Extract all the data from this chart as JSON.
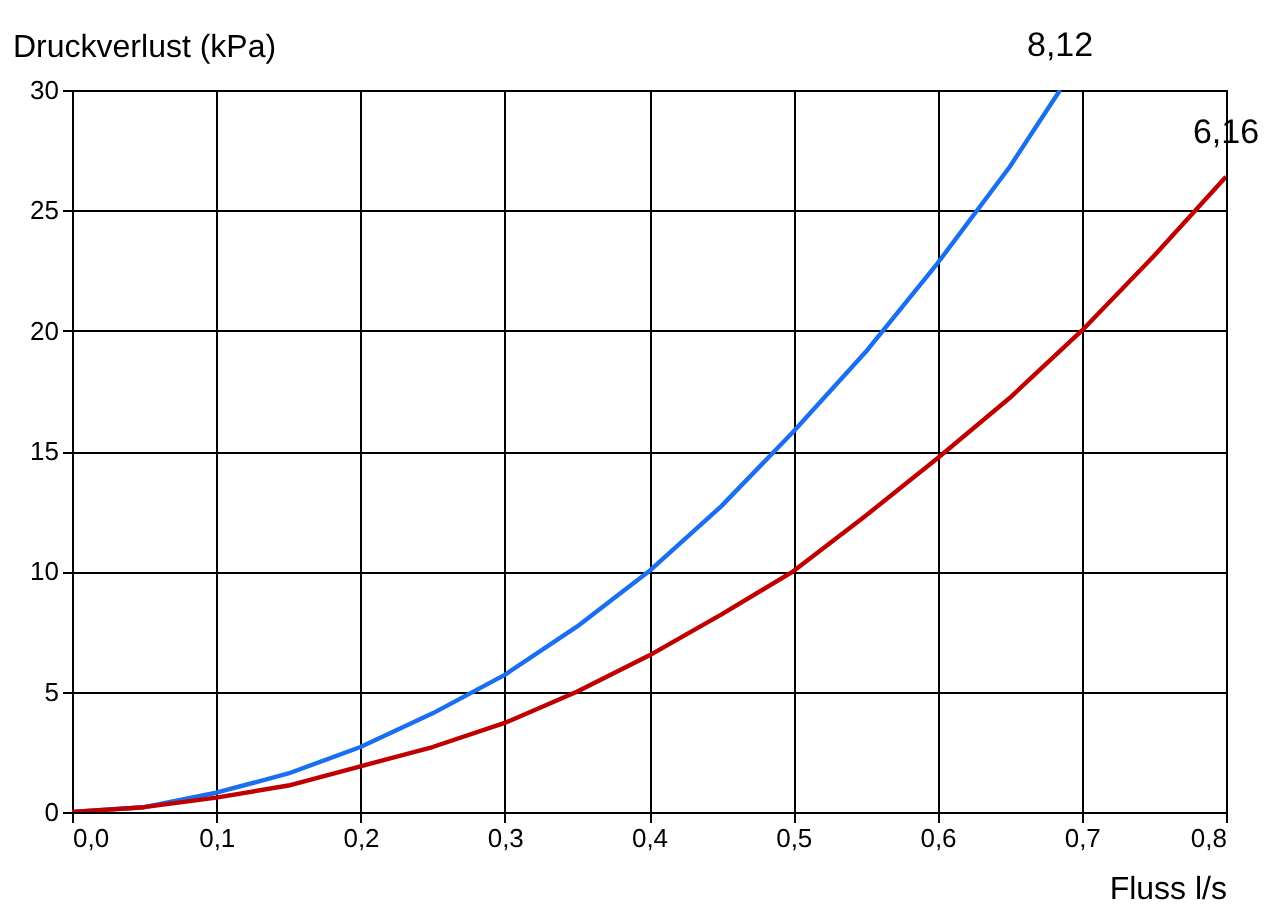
{
  "chart_data": {
    "type": "line",
    "xlabel": "Fluss l/s",
    "ylabel": "Druckverlust (kPa)",
    "xlim": [
      0,
      0.8
    ],
    "ylim": [
      0,
      30
    ],
    "xticks": [
      {
        "value": 0,
        "label": "0,0"
      },
      {
        "value": 0.1,
        "label": "0,1"
      },
      {
        "value": 0.2,
        "label": "0,2"
      },
      {
        "value": 0.3,
        "label": "0,3"
      },
      {
        "value": 0.4,
        "label": "0,4"
      },
      {
        "value": 0.5,
        "label": "0,5"
      },
      {
        "value": 0.6,
        "label": "0,6"
      },
      {
        "value": 0.7,
        "label": "0,7"
      },
      {
        "value": 0.8,
        "label": "0,8"
      }
    ],
    "yticks": [
      0,
      5,
      10,
      15,
      20,
      25,
      30
    ],
    "grid": true,
    "line_style": "solid",
    "series": [
      {
        "name": "8,12",
        "color": "#1a6ff0",
        "x": [
          0,
          0.05,
          0.1,
          0.15,
          0.2,
          0.25,
          0.3,
          0.35,
          0.4,
          0.45,
          0.5,
          0.55,
          0.6,
          0.65,
          0.685
        ],
        "values": [
          0,
          0.2,
          0.8,
          1.6,
          2.7,
          4.1,
          5.7,
          7.7,
          10,
          12.7,
          15.8,
          19.1,
          22.8,
          26.8,
          30
        ]
      },
      {
        "name": "6,16",
        "color": "#c00000",
        "x": [
          0,
          0.05,
          0.1,
          0.15,
          0.2,
          0.25,
          0.3,
          0.35,
          0.4,
          0.45,
          0.5,
          0.55,
          0.6,
          0.65,
          0.7,
          0.75,
          0.8
        ],
        "values": [
          0,
          0.2,
          0.6,
          1.1,
          1.9,
          2.7,
          3.7,
          5,
          6.5,
          8.2,
          10,
          12.3,
          14.7,
          17.2,
          20,
          23.1,
          26.4
        ]
      }
    ]
  }
}
